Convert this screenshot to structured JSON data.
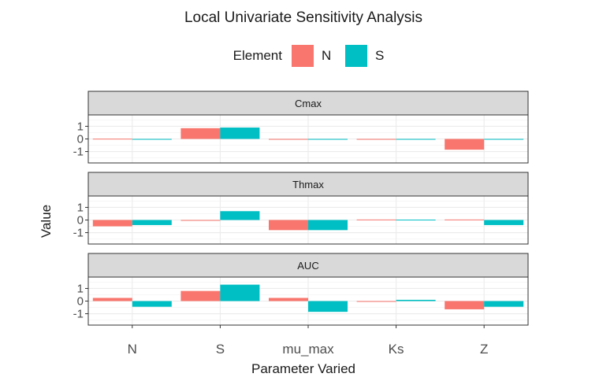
{
  "chart_data": {
    "type": "bar",
    "title": "Local Univariate Sensitivity Analysis",
    "xlabel": "Parameter Varied",
    "ylabel": "Value",
    "legend": {
      "title": "Element",
      "position": "top",
      "entries": [
        "N",
        "S"
      ]
    },
    "colors": {
      "N": "#F8766D",
      "S": "#00BFC4"
    },
    "categories": [
      "N",
      "S",
      "mu_max",
      "Ks",
      "Z"
    ],
    "y_ticks": [
      -1,
      0,
      1
    ],
    "ylim": [
      -1.9,
      1.9
    ],
    "grid": true,
    "panels": [
      {
        "label": "Cmax",
        "series": [
          {
            "name": "N",
            "values": [
              0.02,
              0.85,
              0.0,
              0.0,
              -0.85
            ]
          },
          {
            "name": "S",
            "values": [
              0.0,
              0.9,
              0.0,
              0.0,
              0.0
            ]
          }
        ]
      },
      {
        "label": "Thmax",
        "series": [
          {
            "name": "N",
            "values": [
              -0.5,
              -0.06,
              -0.8,
              0.04,
              0.04
            ]
          },
          {
            "name": "S",
            "values": [
              -0.4,
              0.7,
              -0.8,
              0.03,
              -0.4
            ]
          }
        ]
      },
      {
        "label": "AUC",
        "series": [
          {
            "name": "N",
            "values": [
              0.25,
              0.8,
              0.25,
              -0.05,
              -0.65
            ]
          },
          {
            "name": "S",
            "values": [
              -0.45,
              1.3,
              -0.85,
              0.1,
              -0.45
            ]
          }
        ]
      }
    ]
  }
}
